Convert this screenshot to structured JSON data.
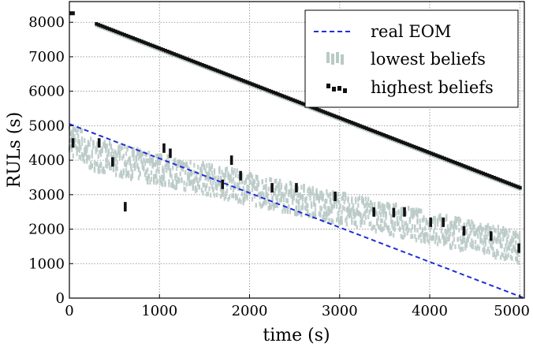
{
  "chart_data": {
    "type": "scatter",
    "xlabel": "time (s)",
    "ylabel": "RULs (s)",
    "xlim": [
      0,
      5050
    ],
    "ylim": [
      0,
      8600
    ],
    "xticks": [
      0,
      1000,
      2000,
      3000,
      4000,
      5000
    ],
    "xtick_labels": [
      "0",
      "1000",
      "2000",
      "3000",
      "4000",
      "5000"
    ],
    "yticks": [
      0,
      1000,
      2000,
      3000,
      4000,
      5000,
      6000,
      7000,
      8000
    ],
    "ytick_labels": [
      "0",
      "1000",
      "2000",
      "3000",
      "4000",
      "5000",
      "6000",
      "7000",
      "8000"
    ],
    "grid": true,
    "legend_position": "top-right",
    "legend": [
      "real EOM",
      "lowest beliefs",
      "highest beliefs"
    ],
    "colors": {
      "real_eom": "#1f2fd6",
      "lowest": "#b9c9c6",
      "highest": "#111111"
    },
    "real_eom": {
      "x": [
        0,
        5050
      ],
      "y": [
        5050,
        0
      ]
    },
    "upper_trend": {
      "x": [
        0,
        5050
      ],
      "y": [
        8250,
        3150
      ]
    },
    "lowest_trend": {
      "x": [
        0,
        5050
      ],
      "y": [
        4300,
        1450
      ]
    },
    "highest_beliefs_lower": [
      {
        "x": 40,
        "y": 4500
      },
      {
        "x": 330,
        "y": 4500
      },
      {
        "x": 480,
        "y": 3950
      },
      {
        "x": 620,
        "y": 2650
      },
      {
        "x": 1050,
        "y": 4350
      },
      {
        "x": 1120,
        "y": 4200
      },
      {
        "x": 1700,
        "y": 3300
      },
      {
        "x": 1800,
        "y": 4000
      },
      {
        "x": 1900,
        "y": 3550
      },
      {
        "x": 2250,
        "y": 3200
      },
      {
        "x": 2520,
        "y": 3200
      },
      {
        "x": 2950,
        "y": 2950
      },
      {
        "x": 3380,
        "y": 2500
      },
      {
        "x": 3600,
        "y": 2480
      },
      {
        "x": 3720,
        "y": 2500
      },
      {
        "x": 4010,
        "y": 2200
      },
      {
        "x": 4150,
        "y": 2200
      },
      {
        "x": 4380,
        "y": 1950
      },
      {
        "x": 4680,
        "y": 1800
      },
      {
        "x": 4990,
        "y": 1450
      }
    ]
  }
}
